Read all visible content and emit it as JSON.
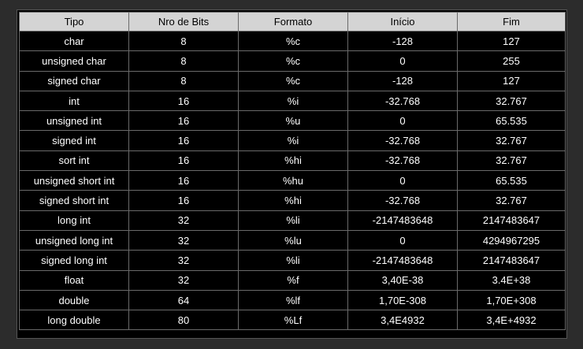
{
  "table": {
    "headers": [
      "Tipo",
      "Nro de Bits",
      "Formato",
      "Início",
      "Fim"
    ],
    "rows": [
      [
        "char",
        "8",
        "%c",
        "-128",
        "127"
      ],
      [
        "unsigned char",
        "8",
        "%c",
        "0",
        "255"
      ],
      [
        "signed char",
        "8",
        "%c",
        "-128",
        "127"
      ],
      [
        "int",
        "16",
        "%i",
        "-32.768",
        "32.767"
      ],
      [
        "unsigned int",
        "16",
        "%u",
        "0",
        "65.535"
      ],
      [
        "signed int",
        "16",
        "%i",
        "-32.768",
        "32.767"
      ],
      [
        "sort int",
        "16",
        "%hi",
        "-32.768",
        "32.767"
      ],
      [
        "unsigned short int",
        "16",
        "%hu",
        "0",
        "65.535"
      ],
      [
        "signed short int",
        "16",
        "%hi",
        "-32.768",
        "32.767"
      ],
      [
        "long int",
        "32",
        "%li",
        "-2147483648",
        "2147483647"
      ],
      [
        "unsigned long int",
        "32",
        "%lu",
        "0",
        "4294967295"
      ],
      [
        "signed long int",
        "32",
        "%li",
        "-2147483648",
        "2147483647"
      ],
      [
        "float",
        "32",
        "%f",
        "3,40E-38",
        "3.4E+38"
      ],
      [
        "double",
        "64",
        "%lf",
        "1,70E-308",
        "1,70E+308"
      ],
      [
        "long double",
        "80",
        "%Lf",
        "3,4E4932",
        "3,4E+4932"
      ]
    ]
  }
}
